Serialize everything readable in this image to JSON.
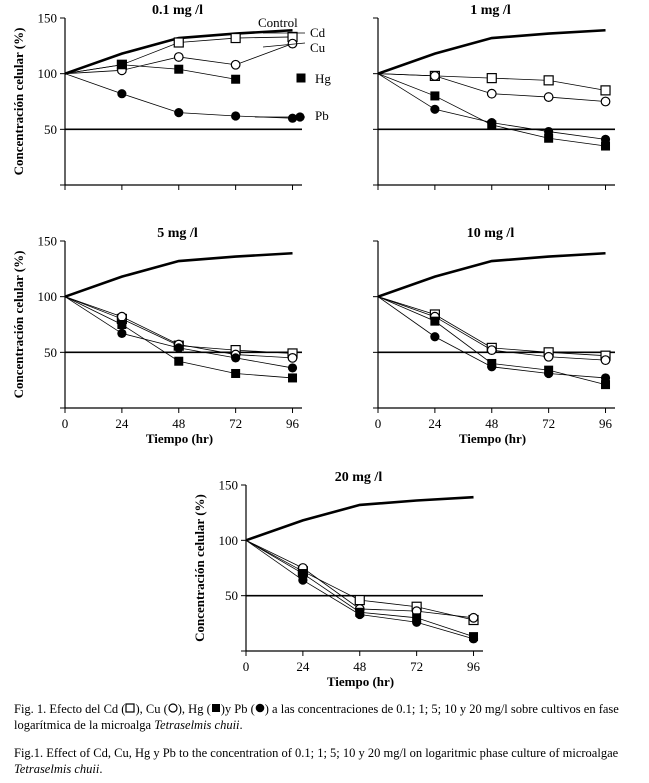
{
  "chart_data": [
    {
      "type": "line",
      "title": "0.1 mg /l",
      "xlabel": "",
      "ylabel": "Concentración celular (%)",
      "x": [
        0,
        24,
        48,
        72,
        96
      ],
      "xticks": [],
      "yticks": [
        50,
        100,
        150
      ],
      "xlim": [
        0,
        100
      ],
      "ylim": [
        0,
        150
      ],
      "reference_line": 50,
      "series": [
        {
          "name": "Control",
          "values": [
            100,
            118,
            132,
            136,
            139
          ]
        },
        {
          "name": "Cd",
          "values": [
            100,
            108,
            128,
            132,
            133
          ]
        },
        {
          "name": "Cu",
          "values": [
            100,
            103,
            115,
            108,
            127
          ]
        },
        {
          "name": "Hg",
          "values": [
            100,
            108,
            104,
            95,
            null
          ]
        },
        {
          "name": "Pb",
          "values": [
            100,
            82,
            65,
            62,
            60
          ]
        }
      ]
    },
    {
      "type": "line",
      "title": "1 mg /l",
      "xlabel": "",
      "ylabel": "",
      "x": [
        0,
        24,
        48,
        72,
        96
      ],
      "xticks": [],
      "yticks": [],
      "xlim": [
        0,
        100
      ],
      "ylim": [
        0,
        150
      ],
      "reference_line": 50,
      "series": [
        {
          "name": "",
          "values": [
            100,
            118,
            132,
            136,
            139
          ]
        },
        {
          "name": "",
          "values": [
            100,
            98,
            96,
            94,
            85
          ]
        },
        {
          "name": "",
          "values": [
            100,
            98,
            82,
            79,
            75
          ]
        },
        {
          "name": "",
          "values": [
            100,
            80,
            54,
            42,
            35
          ]
        },
        {
          "name": "",
          "values": [
            100,
            68,
            56,
            48,
            41
          ]
        }
      ]
    },
    {
      "type": "line",
      "title": "5  mg /l",
      "xlabel": "Tiempo (hr)",
      "ylabel": "Concentración celular (%)",
      "x": [
        0,
        24,
        48,
        72,
        96
      ],
      "xticks": [
        "0",
        "24",
        "48",
        "72",
        "96"
      ],
      "yticks": [
        50,
        100,
        150
      ],
      "xlim": [
        0,
        100
      ],
      "ylim": [
        0,
        150
      ],
      "reference_line": 50,
      "series": [
        {
          "name": "",
          "values": [
            100,
            118,
            132,
            136,
            139
          ]
        },
        {
          "name": "",
          "values": [
            100,
            80,
            56,
            52,
            49
          ]
        },
        {
          "name": "",
          "values": [
            100,
            82,
            57,
            48,
            45
          ]
        },
        {
          "name": "",
          "values": [
            100,
            75,
            42,
            31,
            27
          ]
        },
        {
          "name": "",
          "values": [
            100,
            67,
            54,
            45,
            36
          ]
        }
      ]
    },
    {
      "type": "line",
      "title": "10 mg /l",
      "xlabel": "Tiempo (hr)",
      "ylabel": "",
      "x": [
        0,
        24,
        48,
        72,
        96
      ],
      "xticks": [
        "0",
        "24",
        "48",
        "72",
        "96"
      ],
      "yticks": [],
      "xlim": [
        0,
        100
      ],
      "ylim": [
        0,
        150
      ],
      "reference_line": 50,
      "series": [
        {
          "name": "",
          "values": [
            100,
            118,
            132,
            136,
            139
          ]
        },
        {
          "name": "",
          "values": [
            100,
            84,
            54,
            50,
            47
          ]
        },
        {
          "name": "",
          "values": [
            100,
            82,
            52,
            46,
            43
          ]
        },
        {
          "name": "",
          "values": [
            100,
            78,
            40,
            34,
            21
          ]
        },
        {
          "name": "",
          "values": [
            100,
            64,
            37,
            31,
            27
          ]
        }
      ]
    },
    {
      "type": "line",
      "title": "20 mg /l",
      "xlabel": "Tiempo (hr)",
      "ylabel": "Concentración celular (%)",
      "x": [
        0,
        24,
        48,
        72,
        96
      ],
      "xticks": [
        "0",
        "24",
        "48",
        "72",
        "96"
      ],
      "yticks": [
        50,
        100,
        150
      ],
      "xlim": [
        0,
        100
      ],
      "ylim": [
        0,
        150
      ],
      "reference_line": 50,
      "series": [
        {
          "name": "",
          "values": [
            100,
            118,
            132,
            136,
            139
          ]
        },
        {
          "name": "",
          "values": [
            100,
            72,
            46,
            40,
            28
          ]
        },
        {
          "name": "",
          "values": [
            100,
            75,
            38,
            36,
            30
          ]
        },
        {
          "name": "",
          "values": [
            100,
            70,
            35,
            30,
            13
          ]
        },
        {
          "name": "",
          "values": [
            100,
            64,
            33,
            26,
            11
          ]
        }
      ]
    }
  ],
  "caption_es": {
    "prefix": "Fig. 1. Efecto del Cd (",
    "mid1": "), Cu (",
    "mid2": "), Hg (",
    "mid3": ")y Pb (",
    "rest": ") a las concentraciones de 0.1; 1; 5; 10 y 20 mg/l sobre cultivos en fase logarítmica de la microalga ",
    "species": "Tetraselmis chuii",
    "end": "."
  },
  "caption_en": {
    "text": "Fig.1. Effect of Cd, Cu, Hg y Pb to the concentration of 0.1; 1; 5; 10 y 20 mg/l on logaritmic phase culture of microalgae ",
    "species": "Tetraselmis chuii",
    "end": "."
  },
  "marker_styles": [
    "none",
    "open-square",
    "open-circle",
    "filled-square",
    "filled-circle"
  ]
}
